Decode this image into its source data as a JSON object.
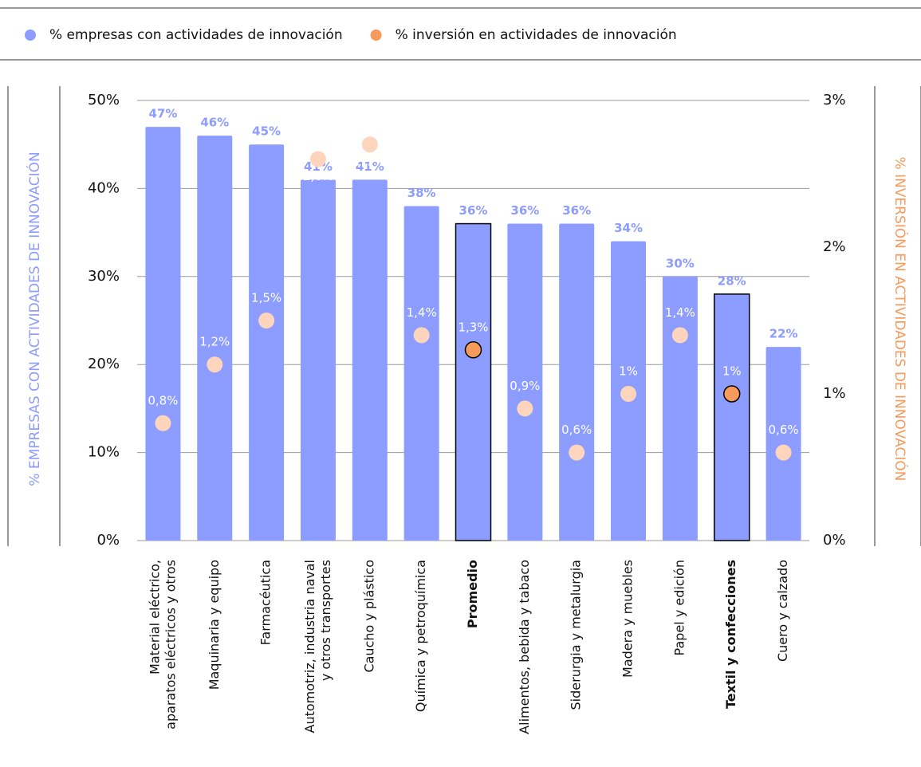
{
  "chart_data": {
    "type": "bar",
    "categories": [
      "Material eléctrico,\naparatos eléctricos y otros",
      "Maquinaria y equipo",
      "Farmacéutica",
      "Automotriz, industria naval\ny otros transportes",
      "Caucho y plástico",
      "Química y petroquímica",
      "Promedio",
      "Alimentos, bebida y tabaco",
      "Siderurgia y metalurgia",
      "Madera y muebles",
      "Papel y edición",
      "Textil y confecciones",
      "Cuero y calzado"
    ],
    "highlighted": [
      6,
      11
    ],
    "y_label": "% EMPRESAS CON ACTIVIDADES DE INNOVACIÓN",
    "y2_label": "% INVERSIÓN EN ACTIVIDADES DE INNOVACIÓN",
    "ylim": [
      0,
      50
    ],
    "yticks": [
      {
        "value": 0,
        "label": "0%"
      },
      {
        "value": 10,
        "label": "10%"
      },
      {
        "value": 20,
        "label": "20%"
      },
      {
        "value": 30,
        "label": "30%"
      },
      {
        "value": 40,
        "label": "40%"
      },
      {
        "value": 50,
        "label": "50%"
      }
    ],
    "y2lim": [
      0,
      3
    ],
    "y2ticks": [
      {
        "value": 0,
        "label": "0%"
      },
      {
        "value": 1,
        "label": "1%"
      },
      {
        "value": 2,
        "label": "2%"
      },
      {
        "value": 3,
        "label": "3%"
      }
    ],
    "grid": true,
    "series": [
      {
        "name": "% empresas con actividades de innovación",
        "type": "bar",
        "color": "#8c9cff",
        "highlight_color": "#8c9cff",
        "values": [
          47,
          46,
          45,
          41,
          41,
          38,
          36,
          36,
          36,
          34,
          30,
          28,
          22
        ],
        "value_labels": [
          "47%",
          "46%",
          "45%",
          "41%",
          "41%",
          "38%",
          "36%",
          "36%",
          "36%",
          "34%",
          "30%",
          "28%",
          "22%"
        ]
      },
      {
        "name": "% inversión en actividades de innovación",
        "type": "scatter",
        "axis": "y2",
        "color": "#fdd5bd",
        "highlight_color": "#f79a5b",
        "values": [
          0.8,
          1.2,
          1.5,
          2.6,
          2.7,
          1.4,
          1.3,
          0.9,
          0.6,
          1,
          1.4,
          1,
          0.6
        ],
        "value_labels": [
          "0,8%",
          "1,2%",
          "1,5%",
          "2,6%",
          "2,7%",
          "1,4%",
          "1,3%",
          "0,9%",
          "0,6%",
          "1%",
          "1,4%",
          "1%",
          "0,6%"
        ]
      }
    ]
  }
}
